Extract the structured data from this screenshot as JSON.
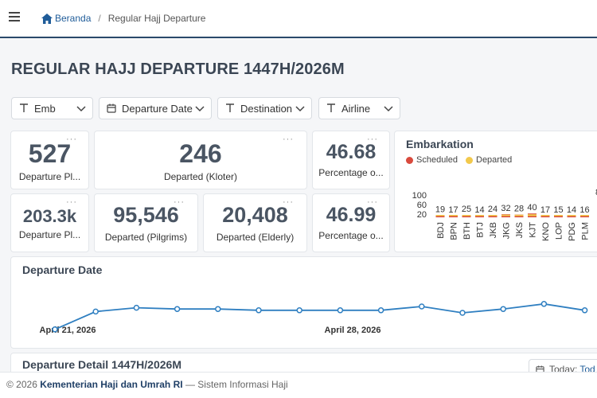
{
  "breadcrumb": {
    "home": "Beranda",
    "separator": "/",
    "current": "Regular Hajj Departure"
  },
  "page_title": "REGULAR HAJJ DEPARTURE 1447H/2026M",
  "filters": [
    {
      "label": "Emb",
      "icon": "text-icon"
    },
    {
      "label": "Departure Date",
      "icon": "calendar-icon"
    },
    {
      "label": "Destination",
      "icon": "text-icon"
    },
    {
      "label": "Airline",
      "icon": "text-icon"
    }
  ],
  "kpis": {
    "departure_plan_kloter": {
      "value": "527",
      "label": "Departure Pl..."
    },
    "departed_kloter": {
      "value": "246",
      "label": "Departed (Kloter)"
    },
    "percentage_kloter": {
      "value": "46.68",
      "label": "Percentage o..."
    },
    "departure_plan_pilgrims": {
      "value": "203.3k",
      "label": "Departure Pl..."
    },
    "departed_pilgrims": {
      "value": "95,546",
      "label": "Departed (Pilgrims)"
    },
    "departed_elderly": {
      "value": "20,408",
      "label": "Departed (Elderly)"
    },
    "percentage_pilgrims": {
      "value": "46.99",
      "label": "Percentage o..."
    },
    "more_label": "···"
  },
  "embarkation": {
    "title": "Embarkation",
    "legend": [
      {
        "name": "Scheduled",
        "color": "#d94a3d"
      },
      {
        "name": "Departed",
        "color": "#f2c94c"
      }
    ],
    "y_ticks": [
      "100",
      "60",
      "20"
    ],
    "partial_label": "8"
  },
  "departure_date": {
    "title": "Departure Date",
    "x_tick_labels": [
      "April 21, 2026",
      "April 28, 2026"
    ]
  },
  "detail": {
    "title": "Departure Detail 1447H/2026M",
    "today_label": "Today:",
    "today_link": "Tod"
  },
  "footer": {
    "copyright": "© 2026",
    "org": "Kementerian Haji dan Umrah RI",
    "dash": "—",
    "system": "Sistem Informasi Haji"
  },
  "chart_data": [
    {
      "type": "bar",
      "title": "Embarkation",
      "categories": [
        "BDJ",
        "BPN",
        "BTH",
        "BTJ",
        "JKB",
        "JKG",
        "JKS",
        "KJT",
        "KNO",
        "LOP",
        "PDG",
        "PLM"
      ],
      "series": [
        {
          "name": "Scheduled",
          "values": [
            19,
            17,
            25,
            14,
            24,
            32,
            28,
            40,
            17,
            15,
            14,
            16
          ]
        },
        {
          "name": "Departed",
          "values": [
            8,
            8,
            10,
            6,
            12,
            15,
            14,
            19,
            8,
            7,
            6,
            8
          ]
        }
      ],
      "data_labels": [
        19,
        17,
        25,
        14,
        24,
        32,
        28,
        40,
        17,
        15,
        14,
        16
      ],
      "ylim": [
        0,
        100
      ]
    },
    {
      "type": "line",
      "title": "Departure Date",
      "x": [
        "2026-04-21",
        "2026-04-22",
        "2026-04-23",
        "2026-04-24",
        "2026-04-25",
        "2026-04-26",
        "2026-04-27",
        "2026-04-28",
        "2026-04-29",
        "2026-04-30",
        "2026-05-01",
        "2026-05-02",
        "2026-05-03",
        "2026-05-04"
      ],
      "series": [
        {
          "values": [
            12,
            26,
            29,
            28,
            28,
            27,
            27,
            27,
            27,
            30,
            25,
            28,
            32,
            27
          ]
        }
      ],
      "ylim": [
        0,
        40
      ]
    }
  ]
}
